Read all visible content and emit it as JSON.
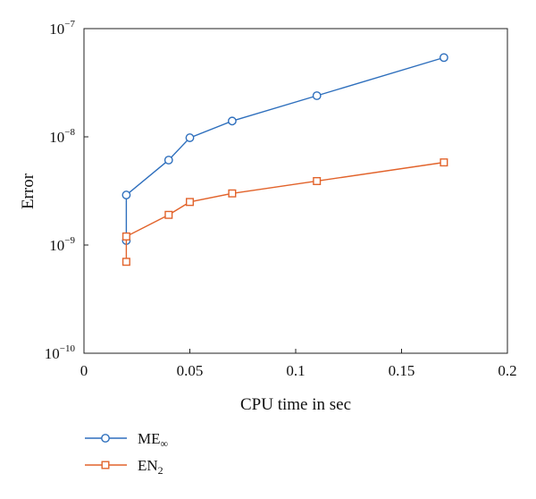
{
  "chart_data": {
    "type": "line",
    "title": "",
    "xlabel": "CPU time in sec",
    "ylabel": "Error",
    "xlim": [
      0,
      0.2
    ],
    "ylim": [
      1e-10,
      1e-07
    ],
    "yscale": "log",
    "grid": false,
    "legend_position": "bottom-left",
    "xticks": [
      {
        "value": 0,
        "label": "0"
      },
      {
        "value": 0.05,
        "label": "0.05"
      },
      {
        "value": 0.1,
        "label": "0.1"
      },
      {
        "value": 0.15,
        "label": "0.15"
      },
      {
        "value": 0.2,
        "label": "0.2"
      }
    ],
    "yticks": [
      {
        "value": 1e-10,
        "base": "10",
        "exp": "−10"
      },
      {
        "value": 1e-09,
        "base": "10",
        "exp": "−9"
      },
      {
        "value": 1e-08,
        "base": "10",
        "exp": "−8"
      },
      {
        "value": 1e-07,
        "base": "10",
        "exp": "−7"
      }
    ],
    "series": [
      {
        "name": "ME",
        "name_sub": "∞",
        "marker": "circle",
        "color": "#2e6fbd",
        "points": [
          {
            "x": 0.02,
            "y": 1.1e-09
          },
          {
            "x": 0.02,
            "y": 2.9e-09
          },
          {
            "x": 0.04,
            "y": 6.1e-09
          },
          {
            "x": 0.05,
            "y": 9.8e-09
          },
          {
            "x": 0.07,
            "y": 1.4e-08
          },
          {
            "x": 0.11,
            "y": 2.4e-08
          },
          {
            "x": 0.17,
            "y": 5.4e-08
          }
        ]
      },
      {
        "name": "EN",
        "name_sub": "2",
        "marker": "square",
        "color": "#e2632b",
        "points": [
          {
            "x": 0.02,
            "y": 7e-10
          },
          {
            "x": 0.02,
            "y": 1.2e-09
          },
          {
            "x": 0.04,
            "y": 1.9e-09
          },
          {
            "x": 0.05,
            "y": 2.5e-09
          },
          {
            "x": 0.07,
            "y": 3e-09
          },
          {
            "x": 0.11,
            "y": 3.9e-09
          },
          {
            "x": 0.17,
            "y": 5.8e-09
          }
        ]
      }
    ]
  }
}
